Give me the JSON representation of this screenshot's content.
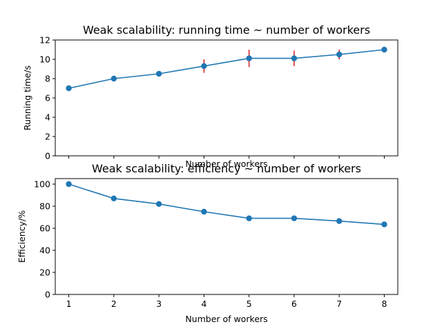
{
  "chart_data": [
    {
      "type": "line",
      "title": "Weak scalability: running time ~ number of workers",
      "xlabel": "Number of workers",
      "ylabel": "Running time/s",
      "x": [
        1,
        2,
        3,
        4,
        5,
        6,
        7,
        8
      ],
      "xticks": [
        1,
        2,
        3,
        4,
        5,
        6,
        7,
        8
      ],
      "show_xtick_labels": false,
      "xlim": [
        0.7,
        8.3
      ],
      "ylim": [
        0,
        12
      ],
      "yticks": [
        0,
        2,
        4,
        6,
        8,
        10,
        12
      ],
      "grid": false,
      "series": [
        {
          "values": [
            7.0,
            8.0,
            8.5,
            9.3,
            10.1,
            10.1,
            10.5,
            11.0
          ],
          "errors": [
            0.0,
            0.3,
            0.0,
            0.7,
            0.9,
            0.8,
            0.5,
            0.0
          ],
          "color": "#1f77b4",
          "error_color": "#d62728"
        }
      ]
    },
    {
      "type": "line",
      "title": "Weak scalability: efficiency ~ number of workers",
      "xlabel": "Number of workers",
      "ylabel": "Efficiency/%",
      "x": [
        1,
        2,
        3,
        4,
        5,
        6,
        7,
        8
      ],
      "xticks": [
        1,
        2,
        3,
        4,
        5,
        6,
        7,
        8
      ],
      "show_xtick_labels": true,
      "xlim": [
        0.7,
        8.3
      ],
      "ylim": [
        0,
        105
      ],
      "yticks": [
        0,
        20,
        40,
        60,
        80,
        100
      ],
      "grid": false,
      "series": [
        {
          "values": [
            100.0,
            87.0,
            82.0,
            75.0,
            69.0,
            69.0,
            66.5,
            63.5
          ],
          "color": "#1f77b4"
        }
      ]
    }
  ]
}
